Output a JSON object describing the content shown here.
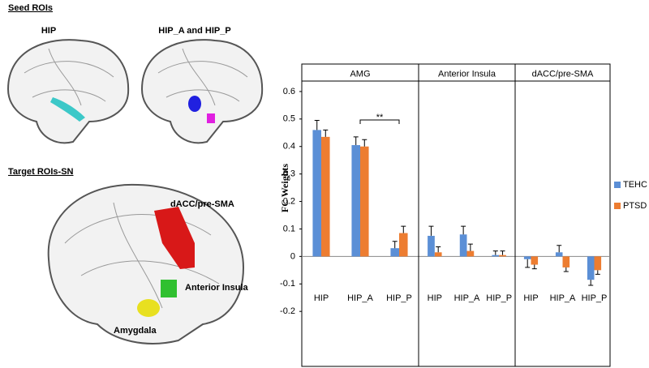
{
  "figure_labels": {
    "seed_heading": "Seed ROIs",
    "seed_hip": "HIP",
    "seed_hip_ap": "HIP_A and HIP_P",
    "target_heading": "Target ROIs-SN",
    "target_dacc": "dACC/pre-SMA",
    "target_insula": "Anterior Insula",
    "target_amygdala": "Amygdala"
  },
  "chart_data": {
    "type": "bar",
    "ylabel": "FC Weights",
    "ylim": [
      -0.4,
      0.7
    ],
    "yticks": [
      -0.2,
      -0.1,
      0,
      0.1,
      0.2,
      0.3,
      0.4,
      0.5,
      0.6
    ],
    "series": [
      {
        "name": "TEHC",
        "color": "#5b8fd6"
      },
      {
        "name": "PTSD",
        "color": "#ed7d31"
      }
    ],
    "panels": [
      {
        "title": "AMG",
        "categories": [
          "HIP",
          "HIP_A",
          "HIP_P"
        ],
        "annotation": "**",
        "series": [
          {
            "values": [
              0.46,
              0.405,
              0.03
            ],
            "errors": [
              0.035,
              0.03,
              0.025
            ]
          },
          {
            "values": [
              0.435,
              0.4,
              0.085
            ],
            "errors": [
              0.025,
              0.025,
              0.025
            ]
          }
        ]
      },
      {
        "title": "Anterior Insula",
        "categories": [
          "HIP",
          "HIP_A",
          "HIP_P"
        ],
        "series": [
          {
            "values": [
              0.075,
              0.08,
              0.005
            ],
            "errors": [
              0.035,
              0.03,
              0.015
            ]
          },
          {
            "values": [
              0.015,
              0.02,
              0.005
            ],
            "errors": [
              0.02,
              0.025,
              0.015
            ]
          }
        ]
      },
      {
        "title": "dACC/pre-SMA",
        "categories": [
          "HIP",
          "HIP_A",
          "HIP_P"
        ],
        "series": [
          {
            "values": [
              -0.01,
              0.015,
              -0.085
            ],
            "errors": [
              0.03,
              0.025,
              0.02
            ]
          },
          {
            "values": [
              -0.03,
              -0.04,
              -0.05
            ],
            "errors": [
              0.015,
              0.015,
              0.015
            ]
          }
        ]
      }
    ]
  }
}
